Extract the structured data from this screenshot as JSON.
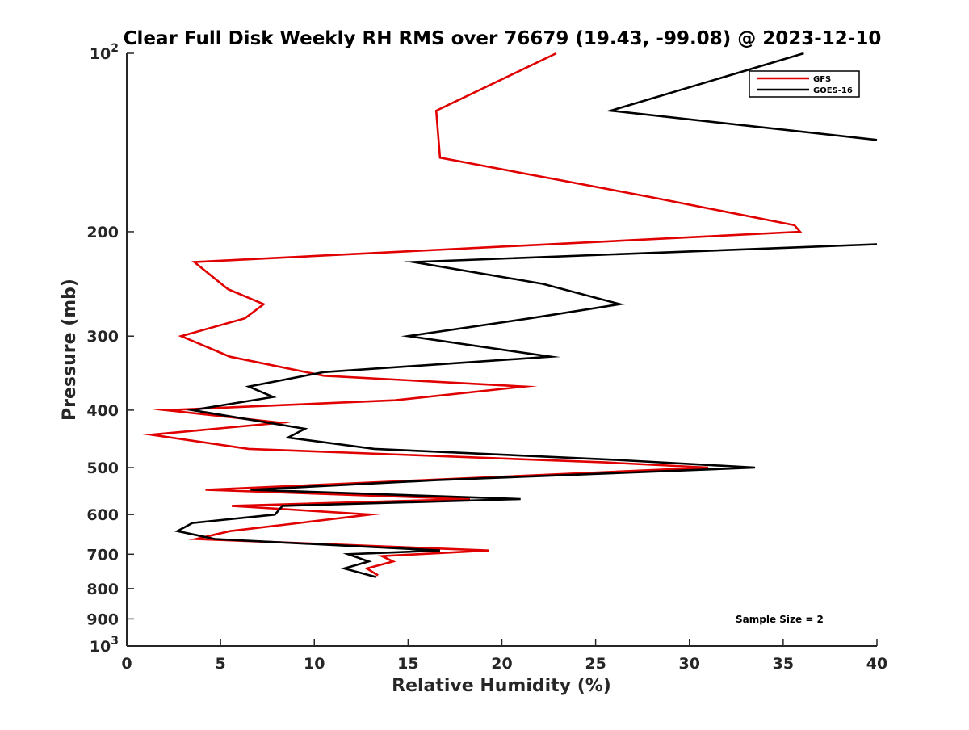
{
  "chart_data": {
    "type": "line",
    "title": "Clear Full Disk Weekly RH RMS over 76679 (19.43, -99.08) @ 2023-12-10",
    "xlabel": "Relative Humidity (%)",
    "ylabel": "Pressure (mb)",
    "xlim": [
      0,
      40
    ],
    "ylim": [
      100,
      1000
    ],
    "y_scale": "log",
    "y_reversed": true,
    "grid": false,
    "legend_position": "top-right",
    "x_ticks": [
      0,
      5,
      10,
      15,
      20,
      25,
      30,
      35,
      40
    ],
    "y_ticks": [
      {
        "value": 100,
        "base": "10",
        "exp": "2"
      },
      {
        "value": 200,
        "label": "200"
      },
      {
        "value": 300,
        "label": "300"
      },
      {
        "value": 400,
        "label": "400"
      },
      {
        "value": 500,
        "label": "500"
      },
      {
        "value": 600,
        "label": "600"
      },
      {
        "value": 700,
        "label": "700"
      },
      {
        "value": 800,
        "label": "800"
      },
      {
        "value": 900,
        "label": "900"
      },
      {
        "value": 1000,
        "base": "10",
        "exp": "3"
      }
    ],
    "annotation": "Sample Size = 2",
    "series": [
      {
        "name": "GFS",
        "color": "#e00000",
        "points": [
          [
            22.9,
            100
          ],
          [
            16.5,
            125
          ],
          [
            16.7,
            150
          ],
          [
            28.0,
            175
          ],
          [
            35.6,
            195
          ],
          [
            35.9,
            200
          ],
          [
            3.6,
            225
          ],
          [
            5.4,
            250
          ],
          [
            7.3,
            265
          ],
          [
            6.3,
            280
          ],
          [
            2.9,
            300
          ],
          [
            5.5,
            325
          ],
          [
            10.5,
            350
          ],
          [
            21.2,
            365
          ],
          [
            14.3,
            385
          ],
          [
            2.1,
            400
          ],
          [
            8.2,
            420
          ],
          [
            1.3,
            440
          ],
          [
            6.5,
            465
          ],
          [
            25.5,
            490
          ],
          [
            31.0,
            500
          ],
          [
            4.2,
            545
          ],
          [
            18.3,
            565
          ],
          [
            5.6,
            580
          ],
          [
            13.0,
            600
          ],
          [
            5.5,
            640
          ],
          [
            3.7,
            660
          ],
          [
            19.3,
            690
          ],
          [
            13.6,
            705
          ],
          [
            14.2,
            720
          ],
          [
            12.8,
            740
          ],
          [
            13.4,
            760
          ]
        ]
      },
      {
        "name": "GOES-16",
        "color": "#000000",
        "points": [
          [
            36.1,
            100
          ],
          [
            25.8,
            125
          ],
          [
            40.0,
            140
          ],
          [
            null,
            null
          ],
          [
            40.0,
            210
          ],
          [
            15.3,
            225
          ],
          [
            22.2,
            245
          ],
          [
            26.3,
            265
          ],
          [
            21.5,
            280
          ],
          [
            15.0,
            300
          ],
          [
            22.6,
            325
          ],
          [
            10.5,
            345
          ],
          [
            6.5,
            365
          ],
          [
            7.8,
            380
          ],
          [
            3.5,
            400
          ],
          [
            9.5,
            430
          ],
          [
            8.6,
            445
          ],
          [
            13.2,
            465
          ],
          [
            25.9,
            485
          ],
          [
            33.5,
            500
          ],
          [
            16.5,
            525
          ],
          [
            6.6,
            545
          ],
          [
            21.0,
            565
          ],
          [
            8.3,
            580
          ],
          [
            7.9,
            600
          ],
          [
            3.5,
            620
          ],
          [
            2.7,
            640
          ],
          [
            4.7,
            660
          ],
          [
            16.7,
            690
          ],
          [
            11.8,
            700
          ],
          [
            12.9,
            720
          ],
          [
            11.6,
            740
          ],
          [
            13.3,
            765
          ]
        ]
      }
    ]
  }
}
